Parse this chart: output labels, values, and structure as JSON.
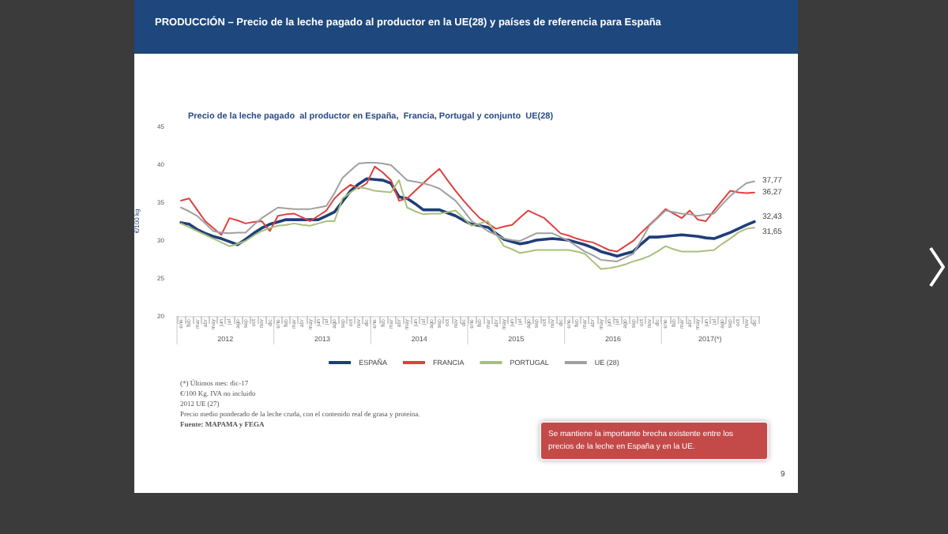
{
  "chart_data": {
    "type": "line",
    "title": "PRODUCCIÓN – Precio de la leche pagado al productor en la UE(28) y países de referencia para España",
    "subtitle": "Precio de la leche pagado  al productor en España,  Francia, Portugal y conjunto  UE(28)",
    "ylabel": "€/100 kg",
    "categories": [
      "ene",
      "feb",
      "mar",
      "abr",
      "may",
      "jun",
      "jul",
      "ago",
      "sep",
      "oct",
      "nov",
      "dic",
      "ene",
      "feb",
      "mar",
      "abr",
      "may",
      "jun",
      "jul",
      "ago",
      "sep",
      "oct",
      "nov",
      "dic",
      "ene",
      "feb",
      "mar",
      "abr",
      "may",
      "jun",
      "jul",
      "ago",
      "sep",
      "oct",
      "nov",
      "dic",
      "ene",
      "feb",
      "mar",
      "abr",
      "may",
      "jun",
      "jul",
      "ago",
      "sep",
      "oct",
      "nov",
      "dic",
      "ene",
      "feb",
      "mar",
      "abr",
      "may",
      "jun",
      "jul",
      "ago",
      "sep",
      "oct",
      "nov",
      "dic",
      "ene",
      "feb",
      "mar",
      "abr",
      "may",
      "jun",
      "jul",
      "ago",
      "sep",
      "oct",
      "nov",
      "dic"
    ],
    "series": [
      {
        "name": "ESPAÑA",
        "color": "#1f3e7a",
        "values": [
          32.3,
          32.1,
          31.4,
          30.9,
          30.5,
          30.2,
          29.8,
          29.4,
          30.1,
          30.9,
          31.6,
          32.1,
          32.4,
          32.7,
          32.7,
          32.7,
          32.7,
          32.7,
          33.2,
          33.7,
          35.1,
          36.5,
          37.4,
          38.1,
          38,
          37.9,
          37.5,
          35.7,
          35.5,
          34.8,
          34,
          34,
          34,
          33.6,
          33.2,
          32.6,
          32.1,
          31.9,
          31.7,
          30.9,
          30.1,
          29.8,
          29.5,
          29.7,
          30,
          30.1,
          30.2,
          30.1,
          30,
          29.7,
          29.4,
          29,
          28.5,
          28.2,
          27.9,
          28.2,
          28.5,
          29.5,
          30.4,
          30.4,
          30.5,
          30.6,
          30.7,
          30.6,
          30.5,
          30.3,
          30.2,
          30.6,
          31,
          31.5,
          32,
          32.43
        ],
        "value_labels": [
          null,
          null,
          null,
          null,
          null,
          null,
          null,
          null,
          null,
          null,
          null,
          null,
          null,
          null,
          null,
          null,
          null,
          null,
          null,
          null,
          null,
          null,
          null,
          null,
          null,
          null,
          null,
          null,
          null,
          null,
          null,
          null,
          null,
          null,
          null,
          null,
          null,
          null,
          null,
          null,
          null,
          null,
          null,
          null,
          null,
          null,
          null,
          null,
          null,
          null,
          null,
          null,
          null,
          null,
          null,
          null,
          null,
          null,
          null,
          null,
          null,
          null,
          null,
          null,
          null,
          null,
          null,
          null,
          null,
          null,
          null,
          "32,43"
        ]
      },
      {
        "name": "FRANCIA",
        "color": "#e0403f",
        "values": [
          35.2,
          35.5,
          34,
          32.5,
          31.6,
          30.7,
          32.9,
          32.6,
          32.2,
          32.4,
          32.5,
          31.2,
          33.2,
          33.4,
          33.5,
          33,
          32.5,
          33.2,
          33.9,
          35.5,
          36.5,
          37.3,
          36.8,
          37.5,
          39.7,
          38.9,
          37.9,
          35.2,
          35.5,
          36.5,
          37.5,
          38.5,
          39.4,
          37.9,
          36.5,
          35.2,
          34,
          32.9,
          32.2,
          31.5,
          31.8,
          32,
          33,
          33.9,
          33.4,
          32.9,
          31.9,
          30.9,
          30.6,
          30.2,
          29.9,
          29.7,
          29.2,
          28.7,
          28.5,
          29.2,
          29.9,
          31,
          32,
          33,
          34.1,
          33.5,
          32.9,
          33.9,
          32.7,
          32.5,
          33.9,
          35.2,
          36.5,
          36.3,
          36.2,
          36.27
        ],
        "value_labels": [
          null,
          null,
          null,
          null,
          null,
          null,
          null,
          null,
          null,
          null,
          null,
          null,
          null,
          null,
          null,
          null,
          null,
          null,
          null,
          null,
          null,
          null,
          null,
          null,
          null,
          null,
          null,
          null,
          null,
          null,
          null,
          null,
          null,
          null,
          null,
          null,
          null,
          null,
          null,
          null,
          null,
          null,
          null,
          null,
          null,
          null,
          null,
          null,
          null,
          null,
          null,
          null,
          null,
          null,
          null,
          null,
          null,
          null,
          null,
          null,
          null,
          null,
          null,
          null,
          null,
          null,
          null,
          null,
          null,
          null,
          null,
          "36,27"
        ]
      },
      {
        "name": "PORTUGAL",
        "color": "#a8c07a",
        "values": [
          32.2,
          31.7,
          31.2,
          30.7,
          30.2,
          29.7,
          29.2,
          29.5,
          29.9,
          30.6,
          31.2,
          31.6,
          31.9,
          32,
          32.2,
          32,
          31.9,
          32.2,
          32.5,
          32.5,
          35.5,
          36.3,
          37,
          36.8,
          36.5,
          36.4,
          36.3,
          37.9,
          34.3,
          33.8,
          33.4,
          33.5,
          33.5,
          33.7,
          33.9,
          32.9,
          31.9,
          32.2,
          32.5,
          30.8,
          29.2,
          28.8,
          28.3,
          28.5,
          28.7,
          28.7,
          28.7,
          28.7,
          28.7,
          28.5,
          28.2,
          27.2,
          26.2,
          26.3,
          26.5,
          26.8,
          27.2,
          27.5,
          27.9,
          28.5,
          29.2,
          28.8,
          28.5,
          28.5,
          28.5,
          28.6,
          28.7,
          29.5,
          30.2,
          31,
          31.5,
          31.65
        ],
        "value_labels": [
          null,
          null,
          null,
          null,
          null,
          null,
          null,
          null,
          null,
          null,
          null,
          null,
          null,
          null,
          null,
          null,
          null,
          null,
          null,
          null,
          null,
          null,
          null,
          null,
          null,
          null,
          null,
          null,
          null,
          null,
          null,
          null,
          null,
          null,
          null,
          null,
          null,
          null,
          null,
          null,
          null,
          null,
          null,
          null,
          null,
          null,
          null,
          null,
          null,
          null,
          null,
          null,
          null,
          null,
          null,
          null,
          null,
          null,
          null,
          null,
          null,
          null,
          null,
          null,
          null,
          null,
          null,
          null,
          null,
          null,
          null,
          "31,65"
        ]
      },
      {
        "name": "UE (28)",
        "color": "#a0a0a0",
        "values": [
          34.3,
          33.8,
          33.2,
          32.2,
          31.2,
          31,
          30.9,
          31,
          31,
          32,
          32.9,
          33.6,
          34.3,
          34.2,
          34.1,
          34.1,
          34.1,
          34.3,
          34.5,
          36.2,
          38.2,
          39.2,
          40.1,
          40.2,
          40.2,
          40.1,
          39.9,
          38.9,
          37.9,
          37.7,
          37.5,
          37.2,
          36.8,
          36,
          35.2,
          33.9,
          32.5,
          31.9,
          31.2,
          30.7,
          30.2,
          30,
          29.9,
          30.4,
          30.9,
          30.9,
          30.9,
          30.4,
          29.9,
          29.2,
          28.5,
          28,
          27.4,
          27.3,
          27.2,
          27.7,
          28.2,
          30,
          31.9,
          32.9,
          33.9,
          33.7,
          33.5,
          33.4,
          33.2,
          33.4,
          33.5,
          34.7,
          35.8,
          36.7,
          37.5,
          37.77
        ],
        "value_labels": [
          null,
          null,
          null,
          null,
          null,
          null,
          null,
          null,
          null,
          null,
          null,
          null,
          null,
          null,
          null,
          null,
          null,
          null,
          null,
          null,
          null,
          null,
          null,
          null,
          null,
          null,
          null,
          null,
          null,
          null,
          null,
          null,
          null,
          null,
          null,
          null,
          null,
          null,
          null,
          null,
          null,
          null,
          null,
          null,
          null,
          null,
          null,
          null,
          null,
          null,
          null,
          null,
          null,
          null,
          null,
          null,
          null,
          null,
          null,
          null,
          null,
          null,
          null,
          null,
          null,
          null,
          null,
          null,
          null,
          null,
          null,
          "37,77"
        ]
      }
    ],
    "ylim": [
      20,
      45
    ],
    "yticks": [
      20,
      25,
      30,
      35,
      40,
      45
    ],
    "grid": false,
    "legend": "bottom",
    "marker": "none",
    "line_style": "solid",
    "annotations": [
      "2012",
      "2013",
      "2014",
      "2015",
      "2016",
      "2017(*)",
      "(*) Últimos mes: dic-17",
      "€/100 Kg. IVA no incluido",
      "2012 UE (27)",
      "Precio medio ponderado de la leche cruda, con el contenido real de grasa y proteína.",
      "Fuente: MAPAMA y FEGA",
      "Se mantiene la importante brecha existente entre los precios de la leche en España y en la UE.",
      "9"
    ]
  }
}
